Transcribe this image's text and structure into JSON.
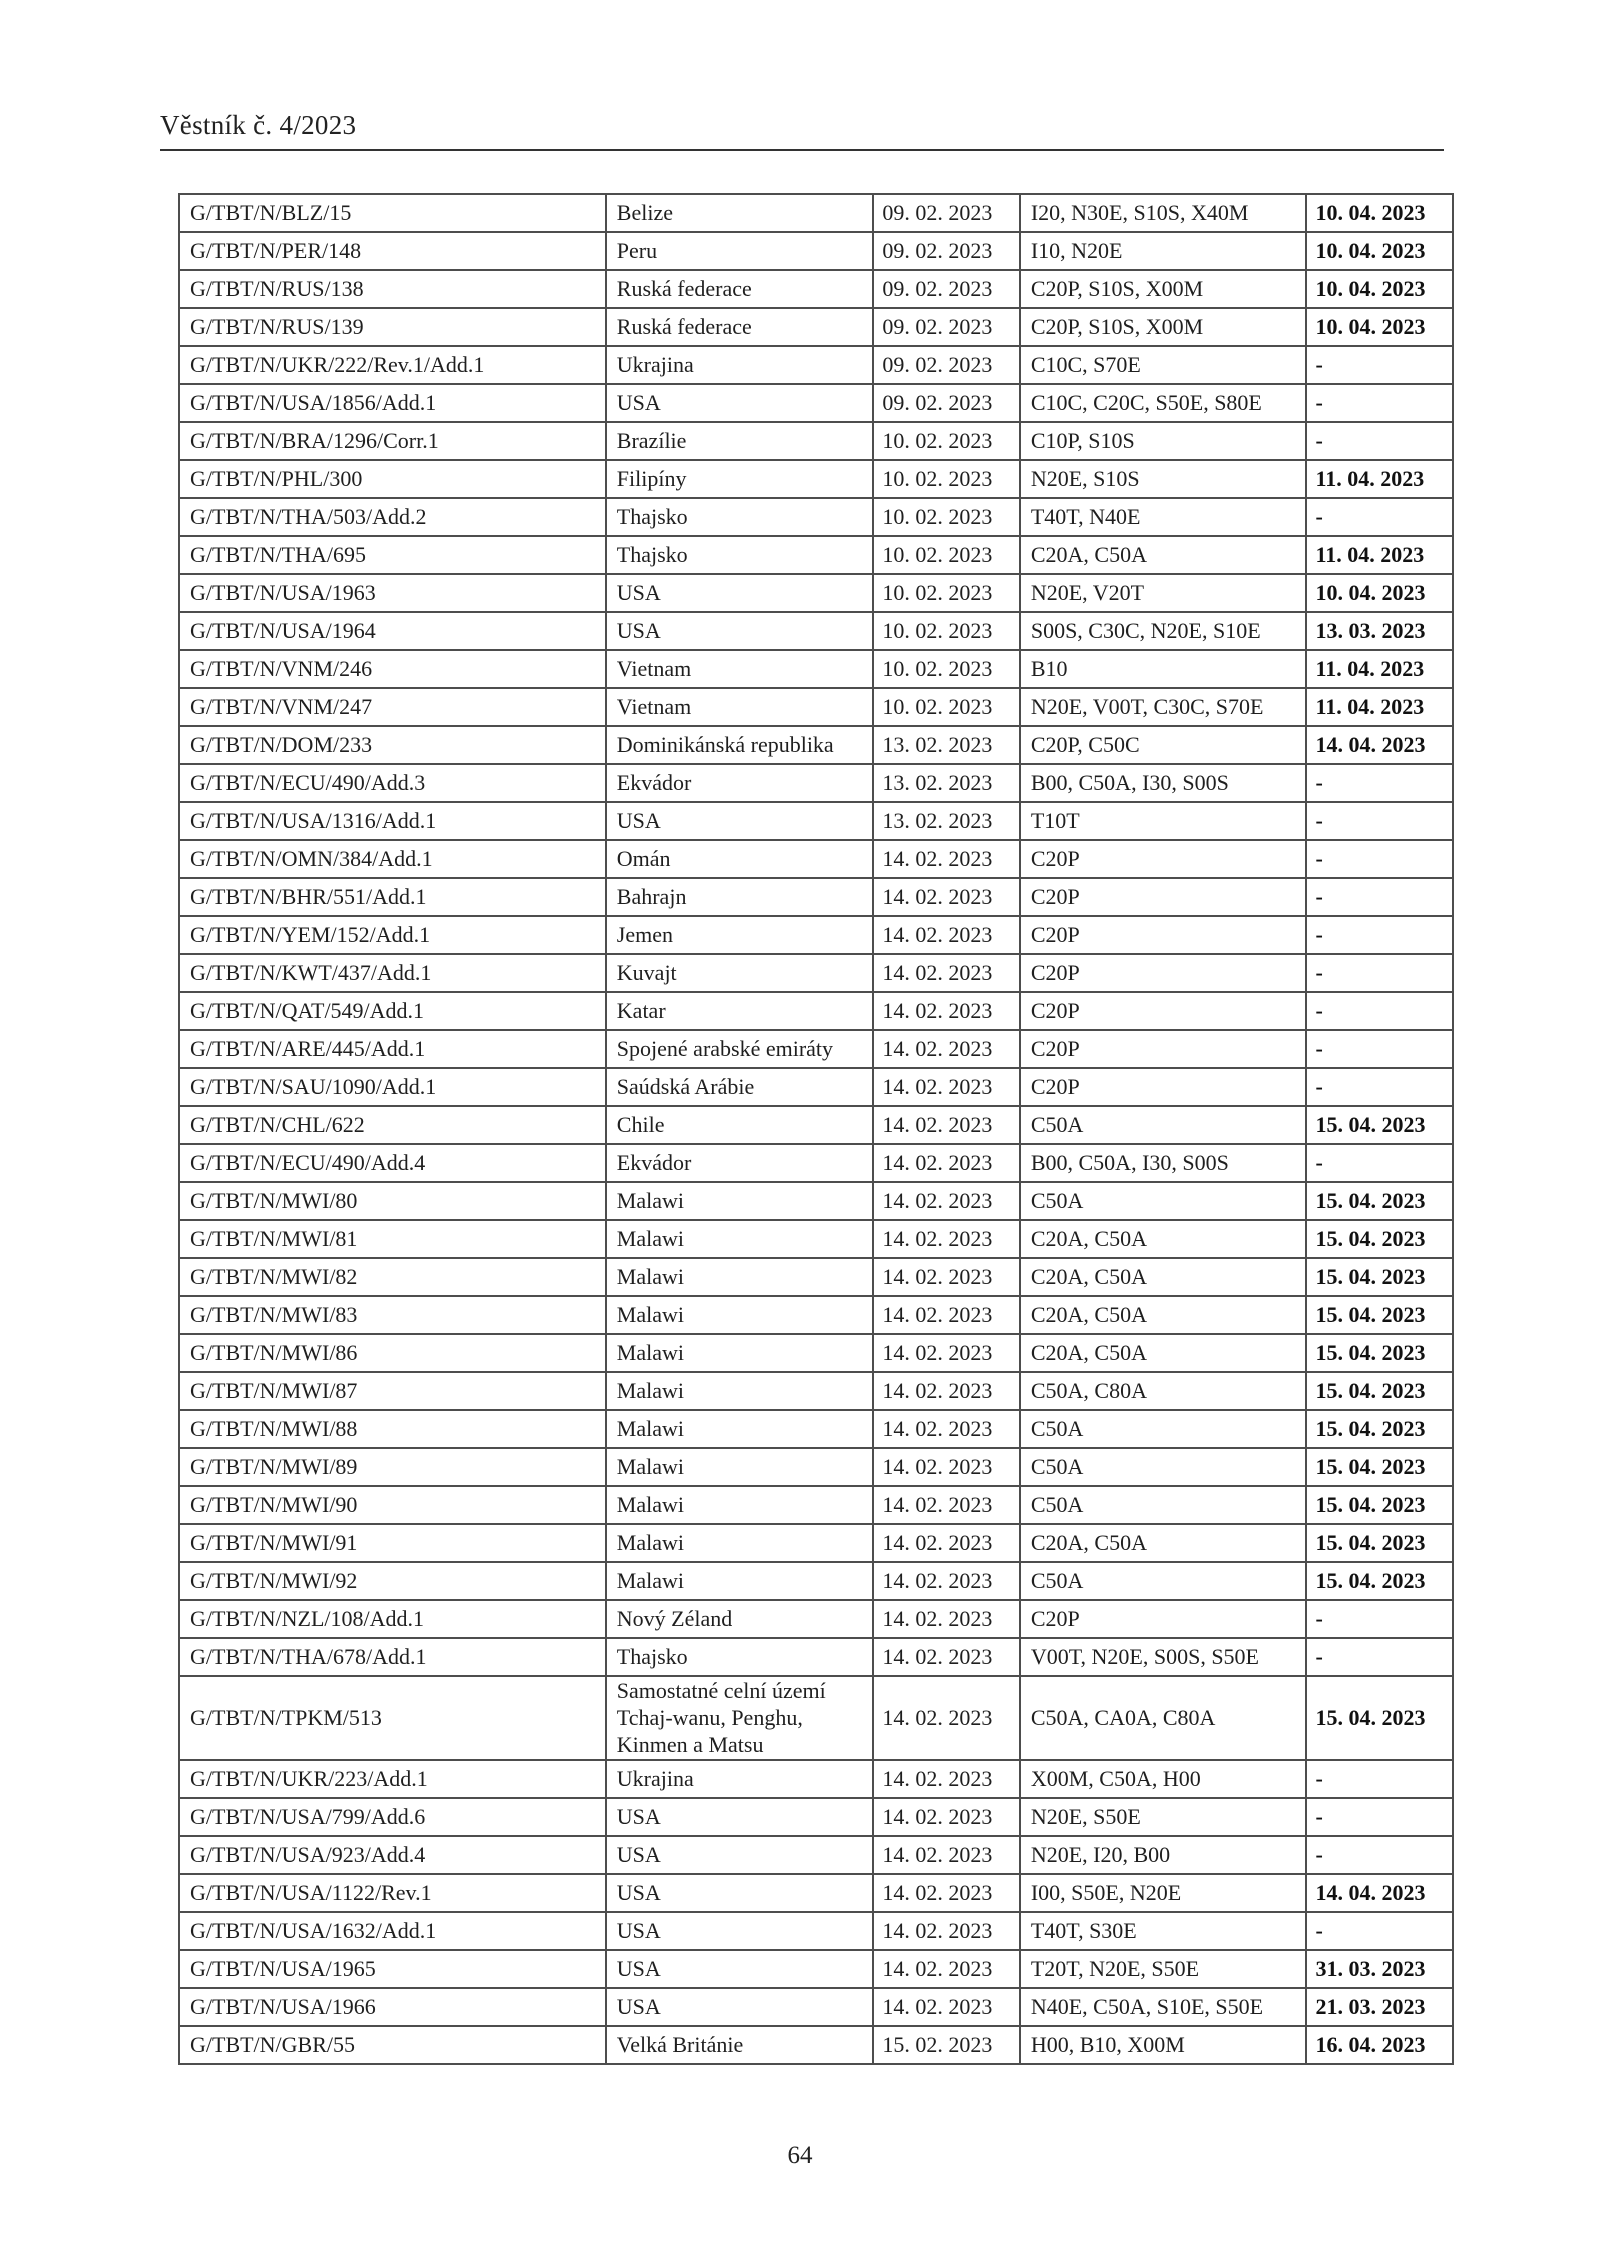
{
  "page": {
    "header_title": "Věstník č. 4/2023",
    "page_number": "64"
  },
  "table": {
    "rows": [
      {
        "notification": "G/TBT/N/BLZ/15",
        "country": "Belize",
        "published": "09. 02. 2023",
        "codes": "I20, N30E, S10S, X40M",
        "deadline": "10. 04. 2023"
      },
      {
        "notification": "G/TBT/N/PER/148",
        "country": "Peru",
        "published": "09. 02. 2023",
        "codes": "I10, N20E",
        "deadline": "10. 04. 2023"
      },
      {
        "notification": "G/TBT/N/RUS/138",
        "country": "Ruská federace",
        "published": "09. 02. 2023",
        "codes": "C20P, S10S, X00M",
        "deadline": "10. 04. 2023"
      },
      {
        "notification": "G/TBT/N/RUS/139",
        "country": "Ruská federace",
        "published": "09. 02. 2023",
        "codes": "C20P, S10S, X00M",
        "deadline": "10. 04. 2023"
      },
      {
        "notification": "G/TBT/N/UKR/222/Rev.1/Add.1",
        "country": "Ukrajina",
        "published": "09. 02. 2023",
        "codes": "C10C, S70E",
        "deadline": "-"
      },
      {
        "notification": "G/TBT/N/USA/1856/Add.1",
        "country": "USA",
        "published": "09. 02. 2023",
        "codes": "C10C, C20C, S50E, S80E",
        "deadline": "-"
      },
      {
        "notification": "G/TBT/N/BRA/1296/Corr.1",
        "country": "Brazílie",
        "published": "10. 02. 2023",
        "codes": "C10P, S10S",
        "deadline": "-"
      },
      {
        "notification": "G/TBT/N/PHL/300",
        "country": "Filipíny",
        "published": "10. 02. 2023",
        "codes": "N20E, S10S",
        "deadline": "11. 04. 2023"
      },
      {
        "notification": "G/TBT/N/THA/503/Add.2",
        "country": "Thajsko",
        "published": "10. 02. 2023",
        "codes": "T40T, N40E",
        "deadline": "-"
      },
      {
        "notification": "G/TBT/N/THA/695",
        "country": "Thajsko",
        "published": "10. 02. 2023",
        "codes": "C20A, C50A",
        "deadline": "11. 04. 2023"
      },
      {
        "notification": "G/TBT/N/USA/1963",
        "country": "USA",
        "published": "10. 02. 2023",
        "codes": "N20E, V20T",
        "deadline": "10. 04. 2023"
      },
      {
        "notification": "G/TBT/N/USA/1964",
        "country": "USA",
        "published": "10. 02. 2023",
        "codes": "S00S, C30C, N20E, S10E",
        "deadline": "13. 03. 2023"
      },
      {
        "notification": "G/TBT/N/VNM/246",
        "country": "Vietnam",
        "published": "10. 02. 2023",
        "codes": "B10",
        "deadline": "11. 04. 2023"
      },
      {
        "notification": "G/TBT/N/VNM/247",
        "country": "Vietnam",
        "published": "10. 02. 2023",
        "codes": "N20E, V00T, C30C, S70E",
        "deadline": "11. 04. 2023"
      },
      {
        "notification": "G/TBT/N/DOM/233",
        "country": "Dominikánská republika",
        "published": "13. 02. 2023",
        "codes": "C20P, C50C",
        "deadline": "14. 04. 2023"
      },
      {
        "notification": "G/TBT/N/ECU/490/Add.3",
        "country": "Ekvádor",
        "published": "13. 02. 2023",
        "codes": "B00, C50A, I30, S00S",
        "deadline": "-"
      },
      {
        "notification": "G/TBT/N/USA/1316/Add.1",
        "country": "USA",
        "published": "13. 02. 2023",
        "codes": "T10T",
        "deadline": "-"
      },
      {
        "notification": "G/TBT/N/OMN/384/Add.1",
        "country": "Omán",
        "published": "14. 02. 2023",
        "codes": "C20P",
        "deadline": "-"
      },
      {
        "notification": "G/TBT/N/BHR/551/Add.1",
        "country": "Bahrajn",
        "published": "14. 02. 2023",
        "codes": "C20P",
        "deadline": "-"
      },
      {
        "notification": "G/TBT/N/YEM/152/Add.1",
        "country": "Jemen",
        "published": "14. 02. 2023",
        "codes": "C20P",
        "deadline": "-"
      },
      {
        "notification": "G/TBT/N/KWT/437/Add.1",
        "country": "Kuvajt",
        "published": "14. 02. 2023",
        "codes": "C20P",
        "deadline": "-"
      },
      {
        "notification": "G/TBT/N/QAT/549/Add.1",
        "country": "Katar",
        "published": "14. 02. 2023",
        "codes": "C20P",
        "deadline": "-"
      },
      {
        "notification": "G/TBT/N/ARE/445/Add.1",
        "country": "Spojené arabské emiráty",
        "published": "14. 02. 2023",
        "codes": "C20P",
        "deadline": "-"
      },
      {
        "notification": "G/TBT/N/SAU/1090/Add.1",
        "country": "Saúdská Arábie",
        "published": "14. 02. 2023",
        "codes": "C20P",
        "deadline": "-"
      },
      {
        "notification": "G/TBT/N/CHL/622",
        "country": "Chile",
        "published": "14. 02. 2023",
        "codes": "C50A",
        "deadline": "15. 04. 2023"
      },
      {
        "notification": "G/TBT/N/ECU/490/Add.4",
        "country": "Ekvádor",
        "published": "14. 02. 2023",
        "codes": "B00, C50A, I30, S00S",
        "deadline": "-"
      },
      {
        "notification": "G/TBT/N/MWI/80",
        "country": "Malawi",
        "published": "14. 02. 2023",
        "codes": "C50A",
        "deadline": "15. 04. 2023"
      },
      {
        "notification": "G/TBT/N/MWI/81",
        "country": "Malawi",
        "published": "14. 02. 2023",
        "codes": "C20A, C50A",
        "deadline": "15. 04. 2023"
      },
      {
        "notification": "G/TBT/N/MWI/82",
        "country": "Malawi",
        "published": "14. 02. 2023",
        "codes": "C20A, C50A",
        "deadline": "15. 04. 2023"
      },
      {
        "notification": "G/TBT/N/MWI/83",
        "country": "Malawi",
        "published": "14. 02. 2023",
        "codes": "C20A, C50A",
        "deadline": "15. 04. 2023"
      },
      {
        "notification": "G/TBT/N/MWI/86",
        "country": "Malawi",
        "published": "14. 02. 2023",
        "codes": "C20A, C50A",
        "deadline": "15. 04. 2023"
      },
      {
        "notification": "G/TBT/N/MWI/87",
        "country": "Malawi",
        "published": "14. 02. 2023",
        "codes": "C50A, C80A",
        "deadline": "15. 04. 2023"
      },
      {
        "notification": "G/TBT/N/MWI/88",
        "country": "Malawi",
        "published": "14. 02. 2023",
        "codes": "C50A",
        "deadline": "15. 04. 2023"
      },
      {
        "notification": "G/TBT/N/MWI/89",
        "country": "Malawi",
        "published": "14. 02. 2023",
        "codes": "C50A",
        "deadline": "15. 04. 2023"
      },
      {
        "notification": "G/TBT/N/MWI/90",
        "country": "Malawi",
        "published": "14. 02. 2023",
        "codes": "C50A",
        "deadline": "15. 04. 2023"
      },
      {
        "notification": "G/TBT/N/MWI/91",
        "country": "Malawi",
        "published": "14. 02. 2023",
        "codes": "C20A, C50A",
        "deadline": "15. 04. 2023"
      },
      {
        "notification": "G/TBT/N/MWI/92",
        "country": "Malawi",
        "published": "14. 02. 2023",
        "codes": "C50A",
        "deadline": "15. 04. 2023"
      },
      {
        "notification": "G/TBT/N/NZL/108/Add.1",
        "country": "Nový Zéland",
        "published": "14. 02. 2023",
        "codes": "C20P",
        "deadline": "-"
      },
      {
        "notification": "G/TBT/N/THA/678/Add.1",
        "country": "Thajsko",
        "published": "14. 02. 2023",
        "codes": "V00T, N20E, S00S, S50E",
        "deadline": "-"
      },
      {
        "notification": "G/TBT/N/TPKM/513",
        "country": "Samostatné celní území Tchaj-wanu, Penghu, Kinmen a Matsu",
        "published": "14. 02. 2023",
        "codes": "C50A, CA0A, C80A",
        "deadline": "15. 04. 2023"
      },
      {
        "notification": "G/TBT/N/UKR/223/Add.1",
        "country": "Ukrajina",
        "published": "14. 02. 2023",
        "codes": "X00M, C50A, H00",
        "deadline": "-"
      },
      {
        "notification": "G/TBT/N/USA/799/Add.6",
        "country": "USA",
        "published": "14. 02. 2023",
        "codes": "N20E, S50E",
        "deadline": "-"
      },
      {
        "notification": "G/TBT/N/USA/923/Add.4",
        "country": "USA",
        "published": "14. 02. 2023",
        "codes": "N20E, I20, B00",
        "deadline": "-"
      },
      {
        "notification": "G/TBT/N/USA/1122/Rev.1",
        "country": "USA",
        "published": "14. 02. 2023",
        "codes": "I00, S50E, N20E",
        "deadline": "14. 04. 2023"
      },
      {
        "notification": "G/TBT/N/USA/1632/Add.1",
        "country": "USA",
        "published": "14. 02. 2023",
        "codes": "T40T, S30E",
        "deadline": "-"
      },
      {
        "notification": "G/TBT/N/USA/1965",
        "country": "USA",
        "published": "14. 02. 2023",
        "codes": "T20T, N20E, S50E",
        "deadline": "31. 03. 2023"
      },
      {
        "notification": "G/TBT/N/USA/1966",
        "country": "USA",
        "published": "14. 02. 2023",
        "codes": "N40E, C50A, S10E, S50E",
        "deadline": "21. 03. 2023"
      },
      {
        "notification": "G/TBT/N/GBR/55",
        "country": "Velká Británie",
        "published": "15. 02. 2023",
        "codes": "H00, B10, X00M",
        "deadline": "16. 04. 2023"
      }
    ]
  }
}
